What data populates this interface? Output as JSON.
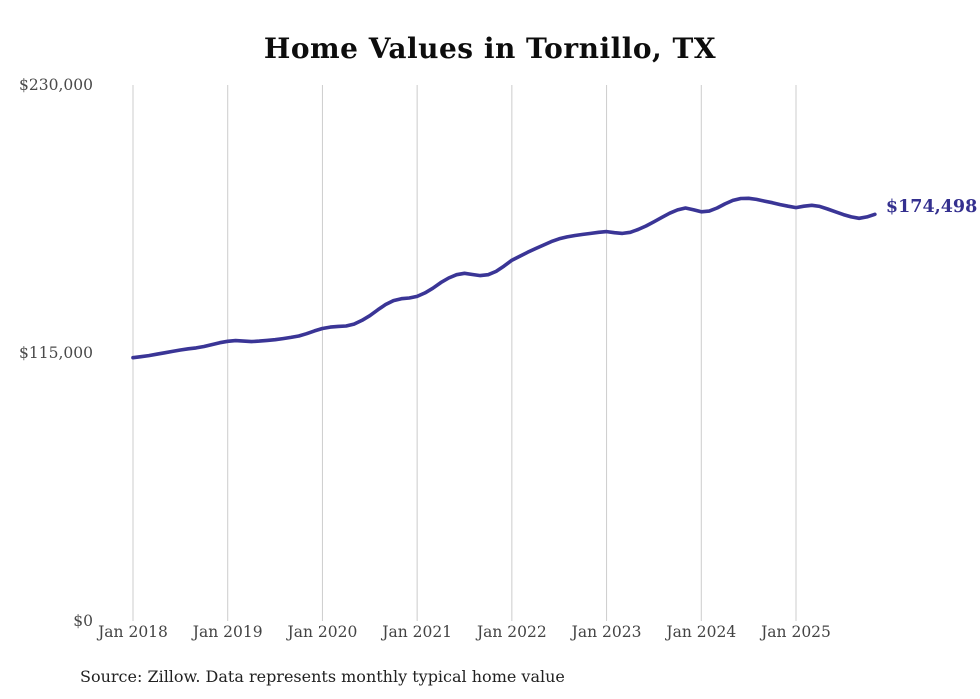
{
  "title": "Home Values in Tornillo, TX",
  "source_note": "Source: Zillow. Data represents monthly typical home value",
  "end_label": "$174,498",
  "colors": {
    "line": "#3a3596",
    "end_label_text": "#34308f",
    "grid": "#cccccc",
    "axis_text": "#4a4a4a",
    "title_text": "#0d0d0d",
    "background": "#ffffff"
  },
  "chart_data": {
    "type": "line",
    "title": "Home Values in Tornillo, TX",
    "xlabel": "",
    "ylabel": "",
    "ylim": [
      0,
      230000
    ],
    "y_tick_labels": [
      "$0",
      "$115,000",
      "$230,000"
    ],
    "y_tick_values": [
      0,
      115000,
      230000
    ],
    "x_tick_labels": [
      "Jan 2018",
      "Jan 2019",
      "Jan 2020",
      "Jan 2021",
      "Jan 2022",
      "Jan 2023",
      "Jan 2024",
      "Jan 2025"
    ],
    "x_start": "2018-01",
    "x_end": "2025-11",
    "frequency": "monthly",
    "grid": "vertical-only",
    "legend": "none",
    "end_value": 174498,
    "series": [
      {
        "name": "Typical home value",
        "values": [
          113000,
          113400,
          113900,
          114500,
          115100,
          115700,
          116300,
          116800,
          117200,
          117800,
          118600,
          119400,
          120000,
          120300,
          120100,
          119900,
          120100,
          120400,
          120700,
          121200,
          121700,
          122300,
          123300,
          124500,
          125500,
          126100,
          126400,
          126600,
          127400,
          129000,
          131000,
          133500,
          135800,
          137500,
          138300,
          138600,
          139300,
          140800,
          142800,
          145200,
          147200,
          148600,
          149200,
          148700,
          148200,
          148600,
          150000,
          152300,
          154800,
          156500,
          158200,
          159800,
          161300,
          162800,
          164000,
          164800,
          165400,
          165900,
          166300,
          166800,
          167100,
          166600,
          166300,
          166800,
          168000,
          169500,
          171300,
          173200,
          175000,
          176400,
          177200,
          176500,
          175600,
          175900,
          177200,
          179000,
          180500,
          181300,
          181400,
          180900,
          180200,
          179500,
          178700,
          178000,
          177400,
          178000,
          178400,
          177900,
          176800,
          175600,
          174400,
          173400,
          172800,
          173400,
          174498
        ]
      }
    ]
  }
}
